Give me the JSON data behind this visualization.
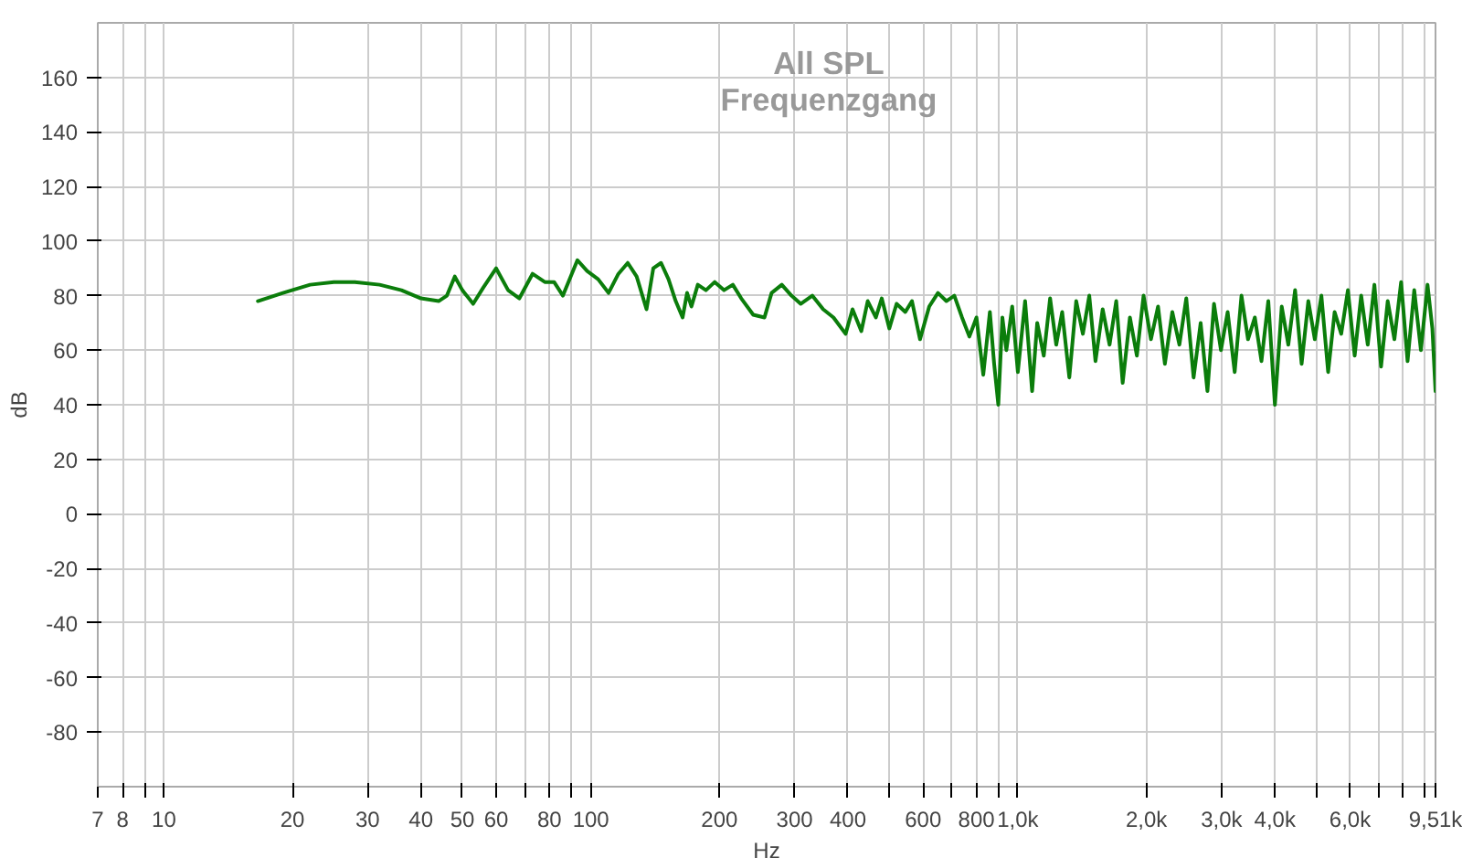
{
  "chart_data": {
    "type": "line",
    "title": "All SPL",
    "subtitle": "Frequenzgang",
    "xlabel": "Hz",
    "ylabel": "dB",
    "log": "x",
    "grid": true,
    "marker": "none",
    "line_style": "solid",
    "xlim": [
      7,
      9510
    ],
    "ylim": [
      -100,
      180
    ],
    "xticks": [
      7,
      8,
      {
        "value": 9,
        "label": null
      },
      10,
      20,
      30,
      40,
      50,
      60,
      {
        "value": 70,
        "label": null
      },
      80,
      {
        "value": 90,
        "label": null
      },
      100,
      200,
      300,
      400,
      {
        "value": 500,
        "label": null
      },
      600,
      {
        "value": 700,
        "label": null
      },
      800,
      {
        "value": 900,
        "label": null
      },
      {
        "value": 1000,
        "label": "1,0k"
      },
      {
        "value": 2000,
        "label": "2,0k"
      },
      {
        "value": 3000,
        "label": "3,0k"
      },
      {
        "value": 4000,
        "label": "4,0k"
      },
      {
        "value": 5000,
        "label": null
      },
      {
        "value": 6000,
        "label": "6,0k"
      },
      {
        "value": 7000,
        "label": null
      },
      {
        "value": 8000,
        "label": null
      },
      {
        "value": 9000,
        "label": null
      },
      {
        "value": 9510,
        "label": "9,51k"
      }
    ],
    "yticks": [
      -80,
      -60,
      -40,
      -20,
      0,
      20,
      40,
      60,
      80,
      100,
      120,
      140,
      160
    ],
    "series": [
      {
        "color": "#0b7d0b",
        "x": [
          16.6,
          19,
          22,
          25,
          28,
          32,
          36,
          40,
          44,
          46,
          48,
          50,
          53,
          56,
          60,
          64,
          68,
          73,
          78,
          82,
          86,
          93,
          98,
          104,
          110,
          116,
          122,
          128,
          135,
          140,
          146,
          152,
          158,
          164,
          168,
          172,
          178,
          186,
          195,
          205,
          215,
          225,
          240,
          255,
          265,
          280,
          295,
          310,
          330,
          350,
          370,
          395,
          410,
          430,
          445,
          465,
          480,
          500,
          520,
          545,
          565,
          590,
          620,
          650,
          680,
          710,
          740,
          770,
          800,
          830,
          860,
          880,
          900,
          920,
          940,
          970,
          1000,
          1040,
          1080,
          1110,
          1150,
          1190,
          1230,
          1270,
          1320,
          1370,
          1420,
          1470,
          1520,
          1580,
          1640,
          1700,
          1760,
          1830,
          1900,
          1970,
          2050,
          2130,
          2210,
          2300,
          2390,
          2480,
          2580,
          2680,
          2780,
          2880,
          2990,
          3100,
          3220,
          3340,
          3460,
          3590,
          3720,
          3860,
          4000,
          4150,
          4300,
          4460,
          4620,
          4790,
          4960,
          5140,
          5330,
          5520,
          5720,
          5930,
          6150,
          6370,
          6600,
          6840,
          7090,
          7350,
          7620,
          7900,
          8180,
          8480,
          8790,
          9110,
          9350,
          9510
        ],
        "values": [
          78,
          81,
          84,
          85,
          85,
          84,
          82,
          79,
          78,
          80,
          87,
          82,
          77,
          83,
          90,
          82,
          79,
          88,
          85,
          85,
          80,
          93,
          89,
          86,
          81,
          88,
          92,
          87,
          75,
          90,
          92,
          86,
          78,
          72,
          81,
          76,
          84,
          82,
          85,
          82,
          84,
          79,
          73,
          72,
          81,
          84,
          80,
          77,
          80,
          75,
          72,
          66,
          75,
          67,
          78,
          72,
          79,
          68,
          77,
          74,
          78,
          64,
          76,
          81,
          78,
          80,
          72,
          65,
          72,
          51,
          74,
          55,
          40,
          72,
          60,
          76,
          52,
          78,
          45,
          70,
          58,
          79,
          62,
          74,
          50,
          78,
          66,
          80,
          56,
          75,
          62,
          78,
          48,
          72,
          58,
          80,
          64,
          76,
          55,
          74,
          62,
          79,
          50,
          70,
          45,
          77,
          60,
          74,
          52,
          80,
          64,
          72,
          56,
          78,
          40,
          76,
          62,
          82,
          55,
          78,
          64,
          80,
          52,
          74,
          66,
          82,
          58,
          80,
          62,
          84,
          54,
          78,
          64,
          85,
          56,
          82,
          60,
          84,
          68,
          45
        ]
      }
    ]
  }
}
